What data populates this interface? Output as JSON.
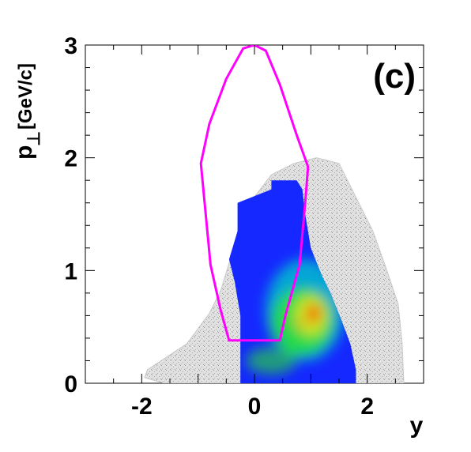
{
  "chart_data": {
    "type": "heatmap",
    "panel_label": "(c)",
    "xlabel": "y",
    "ylabel_main": "p",
    "ylabel_sub": "⊥",
    "ylabel_unit": "[GeV/c]",
    "xlim": [
      -3,
      3
    ],
    "ylim": [
      0,
      3
    ],
    "x_ticks": [
      {
        "value": -2,
        "label": "-2"
      },
      {
        "value": 0,
        "label": "0"
      },
      {
        "value": 2,
        "label": "2"
      }
    ],
    "y_ticks": [
      {
        "value": 0,
        "label": "0"
      },
      {
        "value": 1,
        "label": "1"
      },
      {
        "value": 2,
        "label": "2"
      },
      {
        "value": 3,
        "label": "3"
      }
    ],
    "background_distribution": {
      "color": "#c8c8c8",
      "outline": [
        [
          -1.9,
          0.12
        ],
        [
          -1.2,
          0.35
        ],
        [
          -0.8,
          0.62
        ],
        [
          -0.6,
          0.82
        ],
        [
          -0.4,
          1.15
        ],
        [
          -0.2,
          1.45
        ],
        [
          -0.05,
          1.62
        ],
        [
          0.3,
          1.85
        ],
        [
          0.7,
          1.95
        ],
        [
          1.1,
          2.0
        ],
        [
          1.5,
          1.95
        ],
        [
          1.8,
          1.65
        ],
        [
          2.1,
          1.35
        ],
        [
          2.35,
          1.0
        ],
        [
          2.55,
          0.7
        ],
        [
          2.62,
          0.35
        ],
        [
          2.65,
          0.0
        ],
        [
          -1.6,
          0.0
        ],
        [
          -1.95,
          0.05
        ]
      ]
    },
    "acceptance_region": {
      "color": "#1428ff",
      "outline": [
        [
          -0.25,
          0.0
        ],
        [
          -0.25,
          0.6
        ],
        [
          -0.35,
          0.9
        ],
        [
          -0.45,
          1.1
        ],
        [
          -0.3,
          1.35
        ],
        [
          -0.3,
          1.6
        ],
        [
          -0.05,
          1.65
        ],
        [
          0.3,
          1.72
        ],
        [
          0.3,
          1.8
        ],
        [
          0.75,
          1.8
        ],
        [
          0.85,
          1.72
        ],
        [
          0.9,
          1.5
        ],
        [
          1.0,
          1.2
        ],
        [
          1.2,
          0.95
        ],
        [
          1.35,
          0.8
        ],
        [
          1.55,
          0.55
        ],
        [
          1.7,
          0.35
        ],
        [
          1.8,
          0.12
        ],
        [
          1.8,
          0.0
        ]
      ],
      "hotspots": [
        {
          "x": 0.9,
          "y": 0.65,
          "rx": 0.7,
          "ry": 0.45,
          "color": "#00d2c8",
          "opacity": 0.75
        },
        {
          "x": 0.85,
          "y": 0.55,
          "rx": 0.55,
          "ry": 0.3,
          "color": "#28e628",
          "opacity": 0.8
        },
        {
          "x": 1.0,
          "y": 0.6,
          "rx": 0.3,
          "ry": 0.18,
          "color": "#e6e61e",
          "opacity": 0.85
        },
        {
          "x": 1.05,
          "y": 0.62,
          "rx": 0.12,
          "ry": 0.08,
          "color": "#ff2800",
          "opacity": 0.9
        },
        {
          "x": 0.8,
          "y": 0.52,
          "rx": 0.05,
          "ry": 0.03,
          "color": "#ff0000",
          "opacity": 1.0
        },
        {
          "x": 0.3,
          "y": 0.2,
          "rx": 0.45,
          "ry": 0.12,
          "color": "#28e628",
          "opacity": 0.6
        }
      ]
    },
    "overlay_contour": {
      "color": "#ff00ff",
      "points": [
        [
          0.0,
          3.0
        ],
        [
          0.2,
          2.95
        ],
        [
          0.45,
          2.65
        ],
        [
          0.75,
          2.2
        ],
        [
          0.95,
          1.92
        ],
        [
          0.9,
          1.6
        ],
        [
          0.8,
          1.05
        ],
        [
          0.55,
          0.6
        ],
        [
          0.45,
          0.38
        ],
        [
          -0.45,
          0.38
        ],
        [
          -0.6,
          0.65
        ],
        [
          -0.78,
          1.05
        ],
        [
          -0.95,
          1.95
        ],
        [
          -0.8,
          2.3
        ],
        [
          -0.5,
          2.7
        ],
        [
          -0.2,
          2.97
        ]
      ]
    }
  }
}
